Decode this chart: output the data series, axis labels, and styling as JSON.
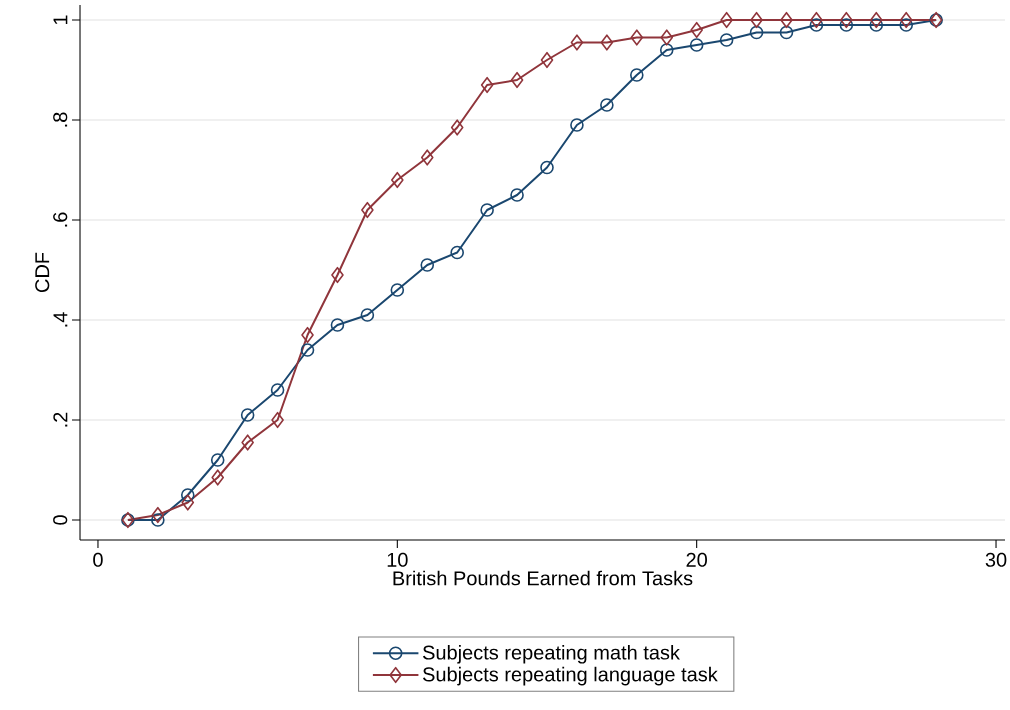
{
  "chart_data": {
    "type": "line",
    "xlabel": "British Pounds Earned from Tasks",
    "ylabel": "CDF",
    "x": [
      1,
      2,
      3,
      4,
      5,
      6,
      7,
      8,
      9,
      10,
      11,
      12,
      13,
      14,
      15,
      16,
      17,
      18,
      19,
      20,
      21,
      22,
      23,
      24,
      25,
      26,
      27,
      28
    ],
    "series": [
      {
        "name": "Subjects repeating math task",
        "color": "#1a476f",
        "marker": "circle",
        "values": [
          0,
          0,
          0.05,
          0.12,
          0.21,
          0.26,
          0.34,
          0.39,
          0.41,
          0.46,
          0.51,
          0.535,
          0.62,
          0.65,
          0.705,
          0.79,
          0.83,
          0.89,
          0.94,
          0.95,
          0.96,
          0.975,
          0.975,
          0.99,
          0.99,
          0.99,
          0.99,
          1
        ]
      },
      {
        "name": "Subjects repeating language task",
        "color": "#90353b",
        "marker": "diamond",
        "values": [
          0,
          0.01,
          0.035,
          0.085,
          0.155,
          0.2,
          0.37,
          0.49,
          0.62,
          0.68,
          0.725,
          0.785,
          0.87,
          0.88,
          0.92,
          0.955,
          0.955,
          0.965,
          0.965,
          0.98,
          1,
          1,
          1,
          1,
          1,
          1,
          1,
          1
        ]
      }
    ],
    "xlim": [
      -0.6,
      30.3
    ],
    "ylim": [
      -0.04,
      1.03
    ],
    "xticks": [
      0,
      10,
      20,
      30
    ],
    "yticks": [
      {
        "value": 0,
        "label": "0"
      },
      {
        "value": 0.2,
        "label": ".2"
      },
      {
        "value": 0.4,
        "label": ".4"
      },
      {
        "value": 0.6,
        "label": ".6"
      },
      {
        "value": 0.8,
        "label": ".8"
      },
      {
        "value": 1,
        "label": "1"
      }
    ],
    "grid": "y",
    "legend": "bottom",
    "line_style": "solid"
  }
}
